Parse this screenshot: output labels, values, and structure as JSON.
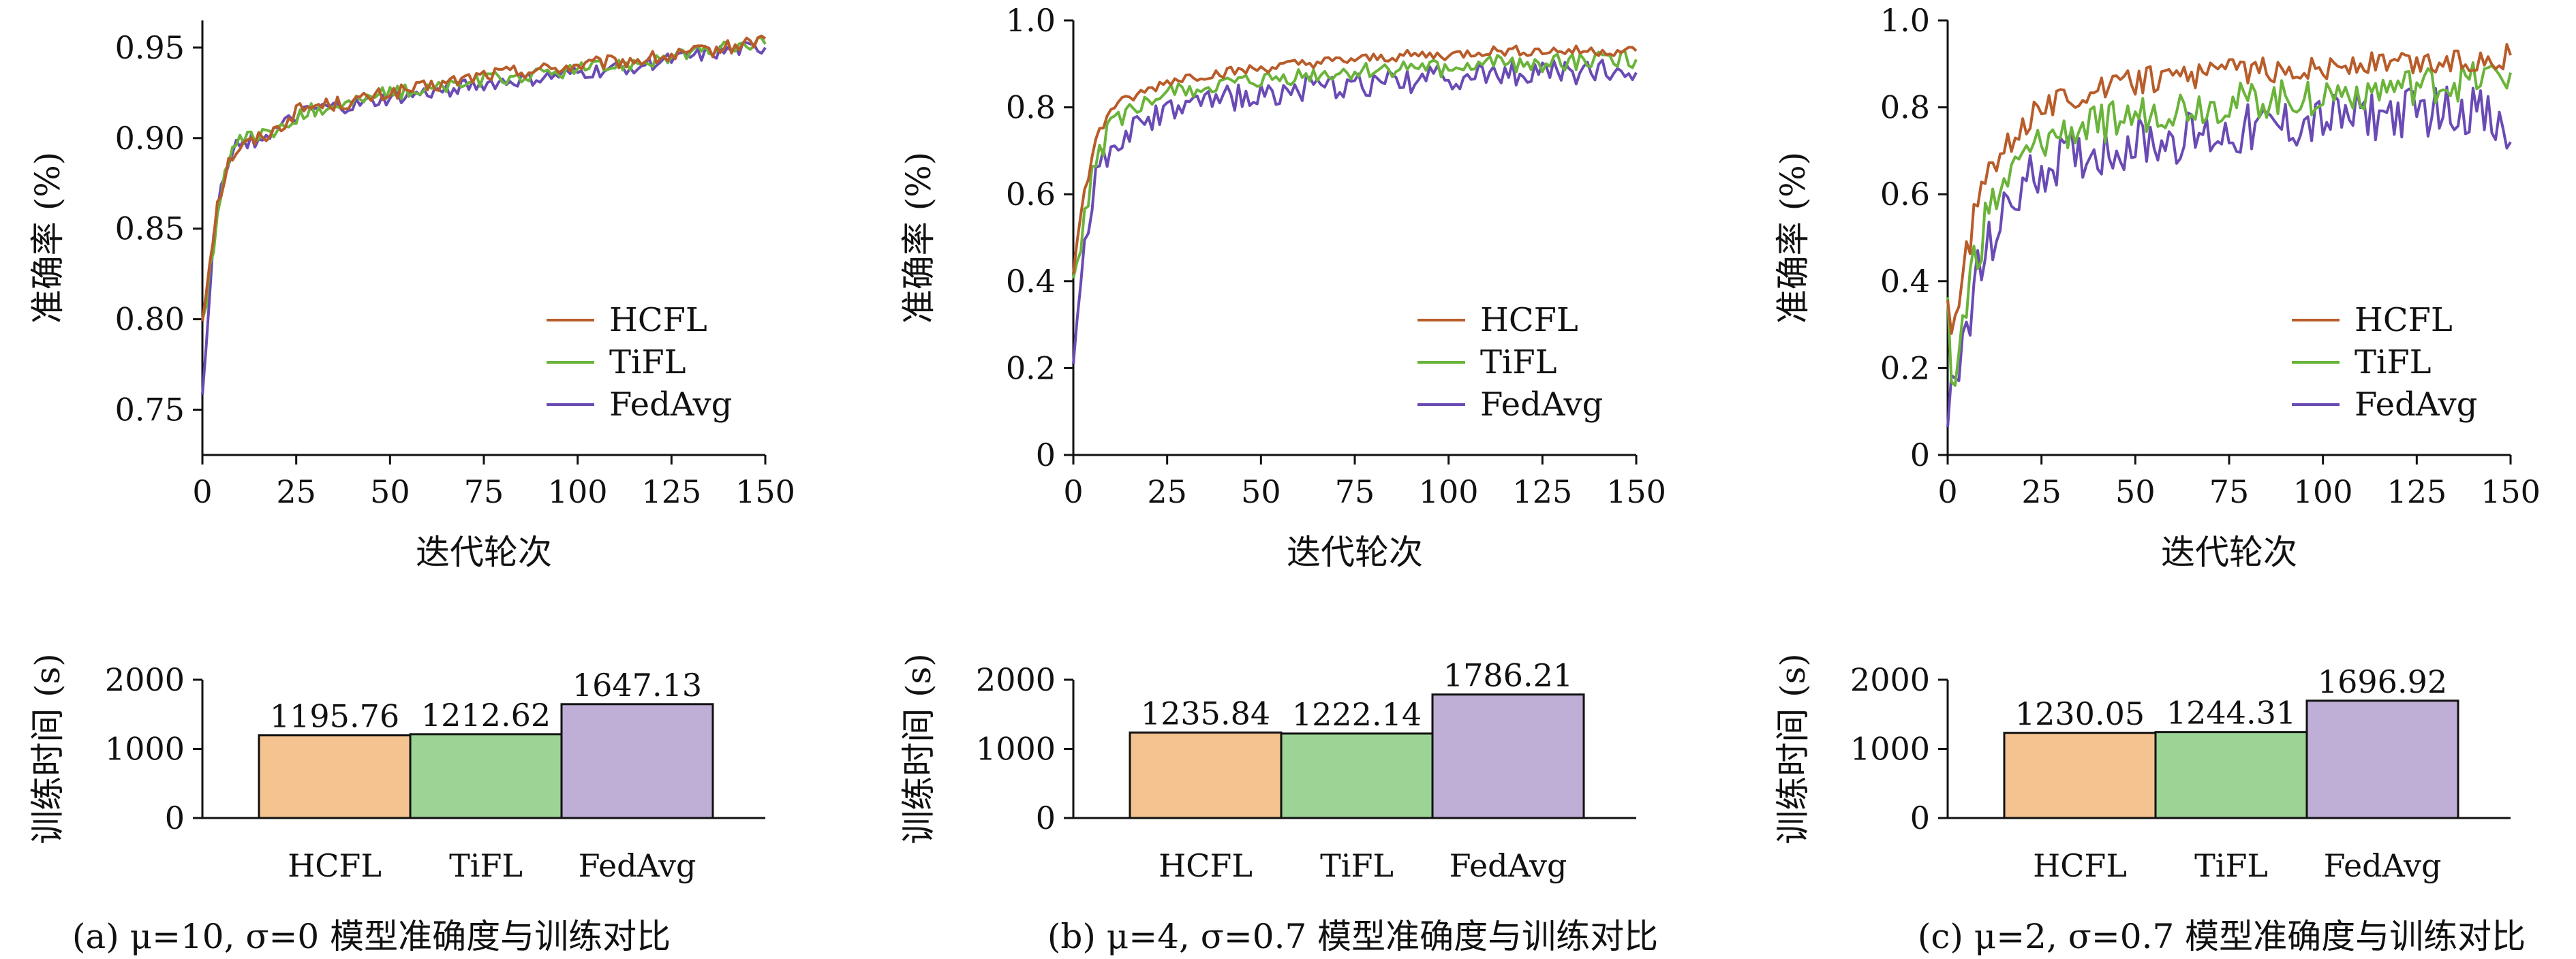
{
  "colors": {
    "HCFL": "#b85c2a",
    "TiFL": "#6ab43a",
    "FedAvg": "#6a4bb5",
    "bar_HCFL": "#f5c390",
    "bar_TiFL": "#9bd494",
    "bar_FedAvg": "#bfaed6"
  },
  "chart_data": [
    {
      "type": "line",
      "xlabel": "迭代轮次",
      "ylabel": "准确率 (%)",
      "xlim": [
        0,
        150
      ],
      "ylim": [
        0.725,
        0.965
      ],
      "xticks": [
        0,
        25,
        50,
        75,
        100,
        125,
        150
      ],
      "yticks": [
        0.75,
        0.8,
        0.85,
        0.9,
        0.95
      ],
      "ytick_labels": [
        "0.75",
        "0.80",
        "0.85",
        "0.90",
        "0.95"
      ],
      "legend": "bottom-right",
      "grid": false,
      "series": [
        {
          "name": "HCFL",
          "color": "#b85c2a",
          "points": [
            [
              0,
              0.8
            ],
            [
              2,
              0.835
            ],
            [
              4,
              0.865
            ],
            [
              6,
              0.88
            ],
            [
              8,
              0.892
            ],
            [
              10,
              0.895
            ],
            [
              15,
              0.9
            ],
            [
              20,
              0.905
            ],
            [
              25,
              0.915
            ],
            [
              30,
              0.918
            ],
            [
              40,
              0.92
            ],
            [
              50,
              0.925
            ],
            [
              60,
              0.928
            ],
            [
              75,
              0.935
            ],
            [
              90,
              0.938
            ],
            [
              100,
              0.94
            ],
            [
              110,
              0.942
            ],
            [
              125,
              0.945
            ],
            [
              140,
              0.95
            ],
            [
              150,
              0.955
            ]
          ]
        },
        {
          "name": "TiFL",
          "color": "#6ab43a",
          "points": [
            [
              0,
              0.795
            ],
            [
              2,
              0.828
            ],
            [
              4,
              0.858
            ],
            [
              6,
              0.878
            ],
            [
              8,
              0.89
            ],
            [
              10,
              0.898
            ],
            [
              15,
              0.902
            ],
            [
              20,
              0.903
            ],
            [
              25,
              0.912
            ],
            [
              30,
              0.916
            ],
            [
              40,
              0.92
            ],
            [
              50,
              0.925
            ],
            [
              60,
              0.927
            ],
            [
              75,
              0.932
            ],
            [
              90,
              0.935
            ],
            [
              100,
              0.938
            ],
            [
              110,
              0.94
            ],
            [
              125,
              0.945
            ],
            [
              140,
              0.95
            ],
            [
              150,
              0.952
            ]
          ]
        },
        {
          "name": "FedAvg",
          "color": "#6a4bb5",
          "points": [
            [
              0,
              0.76
            ],
            [
              2,
              0.82
            ],
            [
              4,
              0.86
            ],
            [
              6,
              0.88
            ],
            [
              8,
              0.89
            ],
            [
              10,
              0.895
            ],
            [
              15,
              0.9
            ],
            [
              20,
              0.905
            ],
            [
              25,
              0.912
            ],
            [
              30,
              0.916
            ],
            [
              40,
              0.918
            ],
            [
              50,
              0.922
            ],
            [
              60,
              0.925
            ],
            [
              75,
              0.93
            ],
            [
              90,
              0.933
            ],
            [
              100,
              0.936
            ],
            [
              110,
              0.938
            ],
            [
              125,
              0.943
            ],
            [
              140,
              0.948
            ],
            [
              150,
              0.95
            ]
          ]
        }
      ]
    },
    {
      "type": "line",
      "xlabel": "迭代轮次",
      "ylabel": "准确率 (%)",
      "xlim": [
        0,
        150
      ],
      "ylim": [
        0,
        1.0
      ],
      "xticks": [
        0,
        25,
        50,
        75,
        100,
        125,
        150
      ],
      "yticks": [
        0,
        0.2,
        0.4,
        0.6,
        0.8,
        1.0
      ],
      "ytick_labels": [
        "0",
        "0.2",
        "0.4",
        "0.6",
        "0.8",
        "1.0"
      ],
      "legend": "bottom-right",
      "grid": false,
      "series": [
        {
          "name": "HCFL",
          "color": "#b85c2a",
          "points": [
            [
              0,
              0.42
            ],
            [
              2,
              0.55
            ],
            [
              4,
              0.65
            ],
            [
              6,
              0.72
            ],
            [
              8,
              0.76
            ],
            [
              10,
              0.8
            ],
            [
              15,
              0.82
            ],
            [
              20,
              0.84
            ],
            [
              25,
              0.86
            ],
            [
              30,
              0.87
            ],
            [
              40,
              0.88
            ],
            [
              50,
              0.89
            ],
            [
              60,
              0.9
            ],
            [
              75,
              0.91
            ],
            [
              90,
              0.92
            ],
            [
              100,
              0.92
            ],
            [
              110,
              0.93
            ],
            [
              125,
              0.93
            ],
            [
              140,
              0.93
            ],
            [
              150,
              0.93
            ]
          ]
        },
        {
          "name": "TiFL",
          "color": "#6ab43a",
          "points": [
            [
              0,
              0.38
            ],
            [
              2,
              0.5
            ],
            [
              4,
              0.6
            ],
            [
              6,
              0.68
            ],
            [
              8,
              0.72
            ],
            [
              10,
              0.76
            ],
            [
              15,
              0.79
            ],
            [
              20,
              0.81
            ],
            [
              25,
              0.83
            ],
            [
              30,
              0.84
            ],
            [
              40,
              0.85
            ],
            [
              50,
              0.86
            ],
            [
              60,
              0.87
            ],
            [
              75,
              0.88
            ],
            [
              90,
              0.89
            ],
            [
              100,
              0.89
            ],
            [
              110,
              0.9
            ],
            [
              125,
              0.9
            ],
            [
              140,
              0.91
            ],
            [
              150,
              0.91
            ]
          ]
        },
        {
          "name": "FedAvg",
          "color": "#6a4bb5",
          "points": [
            [
              0,
              0.22
            ],
            [
              2,
              0.4
            ],
            [
              4,
              0.55
            ],
            [
              6,
              0.63
            ],
            [
              8,
              0.68
            ],
            [
              10,
              0.71
            ],
            [
              15,
              0.74
            ],
            [
              20,
              0.77
            ],
            [
              25,
              0.79
            ],
            [
              30,
              0.8
            ],
            [
              40,
              0.82
            ],
            [
              50,
              0.83
            ],
            [
              60,
              0.84
            ],
            [
              75,
              0.85
            ],
            [
              90,
              0.86
            ],
            [
              100,
              0.87
            ],
            [
              110,
              0.87
            ],
            [
              125,
              0.88
            ],
            [
              140,
              0.88
            ],
            [
              150,
              0.88
            ]
          ]
        }
      ]
    },
    {
      "type": "line",
      "xlabel": "迭代轮次",
      "ylabel": "准确率 (%)",
      "xlim": [
        0,
        150
      ],
      "ylim": [
        0,
        1.0
      ],
      "xticks": [
        0,
        25,
        50,
        75,
        100,
        125,
        150
      ],
      "yticks": [
        0,
        0.2,
        0.4,
        0.6,
        0.8,
        1.0
      ],
      "ytick_labels": [
        "0",
        "0.2",
        "0.4",
        "0.6",
        "0.8",
        "1.0"
      ],
      "legend": "bottom-right",
      "grid": false,
      "series": [
        {
          "name": "HCFL",
          "color": "#b85c2a",
          "points": [
            [
              0,
              0.36
            ],
            [
              2,
              0.28
            ],
            [
              4,
              0.4
            ],
            [
              6,
              0.5
            ],
            [
              8,
              0.58
            ],
            [
              10,
              0.64
            ],
            [
              15,
              0.7
            ],
            [
              20,
              0.76
            ],
            [
              25,
              0.8
            ],
            [
              30,
              0.82
            ],
            [
              40,
              0.84
            ],
            [
              50,
              0.86
            ],
            [
              60,
              0.87
            ],
            [
              75,
              0.88
            ],
            [
              90,
              0.89
            ],
            [
              100,
              0.89
            ],
            [
              110,
              0.9
            ],
            [
              125,
              0.9
            ],
            [
              140,
              0.91
            ],
            [
              150,
              0.92
            ]
          ]
        },
        {
          "name": "TiFL",
          "color": "#6ab43a",
          "points": [
            [
              0,
              0.3
            ],
            [
              2,
              0.18
            ],
            [
              4,
              0.3
            ],
            [
              6,
              0.4
            ],
            [
              8,
              0.48
            ],
            [
              10,
              0.55
            ],
            [
              15,
              0.62
            ],
            [
              20,
              0.68
            ],
            [
              25,
              0.72
            ],
            [
              30,
              0.74
            ],
            [
              40,
              0.76
            ],
            [
              50,
              0.78
            ],
            [
              60,
              0.8
            ],
            [
              75,
              0.81
            ],
            [
              90,
              0.82
            ],
            [
              100,
              0.83
            ],
            [
              110,
              0.84
            ],
            [
              125,
              0.85
            ],
            [
              140,
              0.86
            ],
            [
              150,
              0.88
            ]
          ]
        },
        {
          "name": "FedAvg",
          "color": "#6a4bb5",
          "points": [
            [
              0,
              0.08
            ],
            [
              2,
              0.12
            ],
            [
              4,
              0.25
            ],
            [
              6,
              0.32
            ],
            [
              8,
              0.4
            ],
            [
              10,
              0.46
            ],
            [
              15,
              0.55
            ],
            [
              20,
              0.62
            ],
            [
              25,
              0.66
            ],
            [
              30,
              0.68
            ],
            [
              40,
              0.7
            ],
            [
              50,
              0.72
            ],
            [
              60,
              0.73
            ],
            [
              75,
              0.74
            ],
            [
              90,
              0.76
            ],
            [
              100,
              0.77
            ],
            [
              110,
              0.78
            ],
            [
              125,
              0.79
            ],
            [
              140,
              0.8
            ],
            [
              150,
              0.72
            ]
          ]
        }
      ]
    },
    {
      "type": "bar",
      "ylabel": "训练时间 (s)",
      "categories": [
        "HCFL",
        "TiFL",
        "FedAvg"
      ],
      "values": [
        1195.76,
        1212.62,
        1647.13
      ],
      "value_labels": [
        "1195.76",
        "1212.62",
        "1647.13"
      ],
      "ylim": [
        0,
        2000
      ],
      "yticks": [
        0,
        1000,
        2000
      ],
      "ytick_labels": [
        "0",
        "1000",
        "2000"
      ]
    },
    {
      "type": "bar",
      "ylabel": "训练时间 (s)",
      "categories": [
        "HCFL",
        "TiFL",
        "FedAvg"
      ],
      "values": [
        1235.84,
        1222.14,
        1786.21
      ],
      "value_labels": [
        "1235.84",
        "1222.14",
        "1786.21"
      ],
      "ylim": [
        0,
        2000
      ],
      "yticks": [
        0,
        1000,
        2000
      ],
      "ytick_labels": [
        "0",
        "1000",
        "2000"
      ]
    },
    {
      "type": "bar",
      "ylabel": "训练时间 (s)",
      "categories": [
        "HCFL",
        "TiFL",
        "FedAvg"
      ],
      "values": [
        1230.05,
        1244.31,
        1696.92
      ],
      "value_labels": [
        "1230.05",
        "1244.31",
        "1696.92"
      ],
      "ylim": [
        0,
        2000
      ],
      "yticks": [
        0,
        1000,
        2000
      ],
      "ytick_labels": [
        "0",
        "1000",
        "2000"
      ]
    }
  ],
  "captions": [
    "(a) μ=10, σ=0 模型准确度与训练对比",
    "(b) μ=4, σ=0.7 模型准确度与训练对比",
    "(c) μ=2, σ=0.7 模型准确度与训练对比"
  ]
}
